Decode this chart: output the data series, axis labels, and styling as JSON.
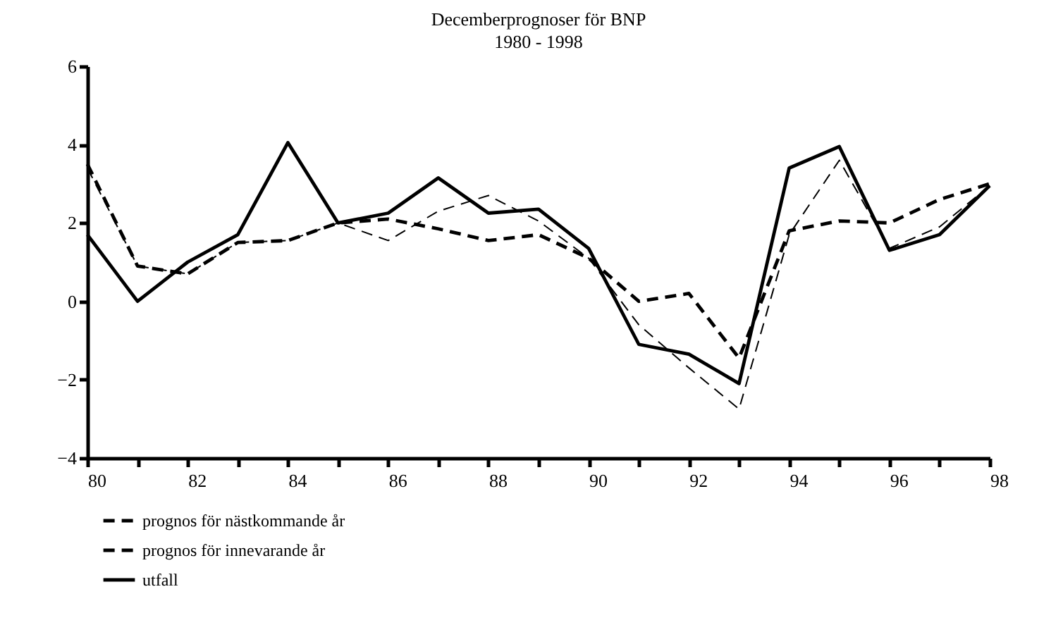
{
  "chart_data": {
    "type": "line",
    "title": "Decemberprognoser för BNP",
    "subtitle": "1980 - 1998",
    "categories": [
      "80",
      null,
      "82",
      null,
      "84",
      null,
      "86",
      null,
      "88",
      null,
      "90",
      null,
      "92",
      null,
      "94",
      null,
      "96",
      null,
      "98"
    ],
    "series": [
      {
        "name": "prognos för nästkommande år",
        "color": "#000000",
        "line_style": "dashed",
        "values": [
          3.5,
          0.9,
          0.7,
          1.5,
          1.55,
          2.0,
          2.1,
          1.85,
          1.55,
          1.7,
          1.1,
          0.0,
          0.2,
          -1.45,
          1.8,
          2.05,
          2.0,
          2.6,
          3.0
        ]
      },
      {
        "name": "prognos för innevarande år",
        "color": "#000000",
        "line_style": "dashed",
        "values": [
          3.4,
          0.9,
          0.7,
          1.5,
          1.55,
          2.0,
          1.55,
          2.3,
          2.7,
          2.05,
          1.1,
          -0.6,
          -1.7,
          -2.75,
          1.7,
          3.6,
          1.35,
          1.9,
          2.95
        ]
      },
      {
        "name": "utfall",
        "color": "#000000",
        "line_style": "solid",
        "values": [
          1.7,
          0.0,
          1.0,
          1.7,
          4.05,
          2.0,
          2.25,
          3.15,
          2.25,
          2.35,
          1.35,
          -1.1,
          -1.35,
          -2.1,
          3.4,
          3.95,
          1.3,
          1.7,
          2.95
        ]
      }
    ],
    "ylim": [
      -4,
      6
    ],
    "yticks": [
      -4,
      -2,
      0,
      2,
      4,
      6
    ],
    "grid": false,
    "legend": "bottom left"
  }
}
